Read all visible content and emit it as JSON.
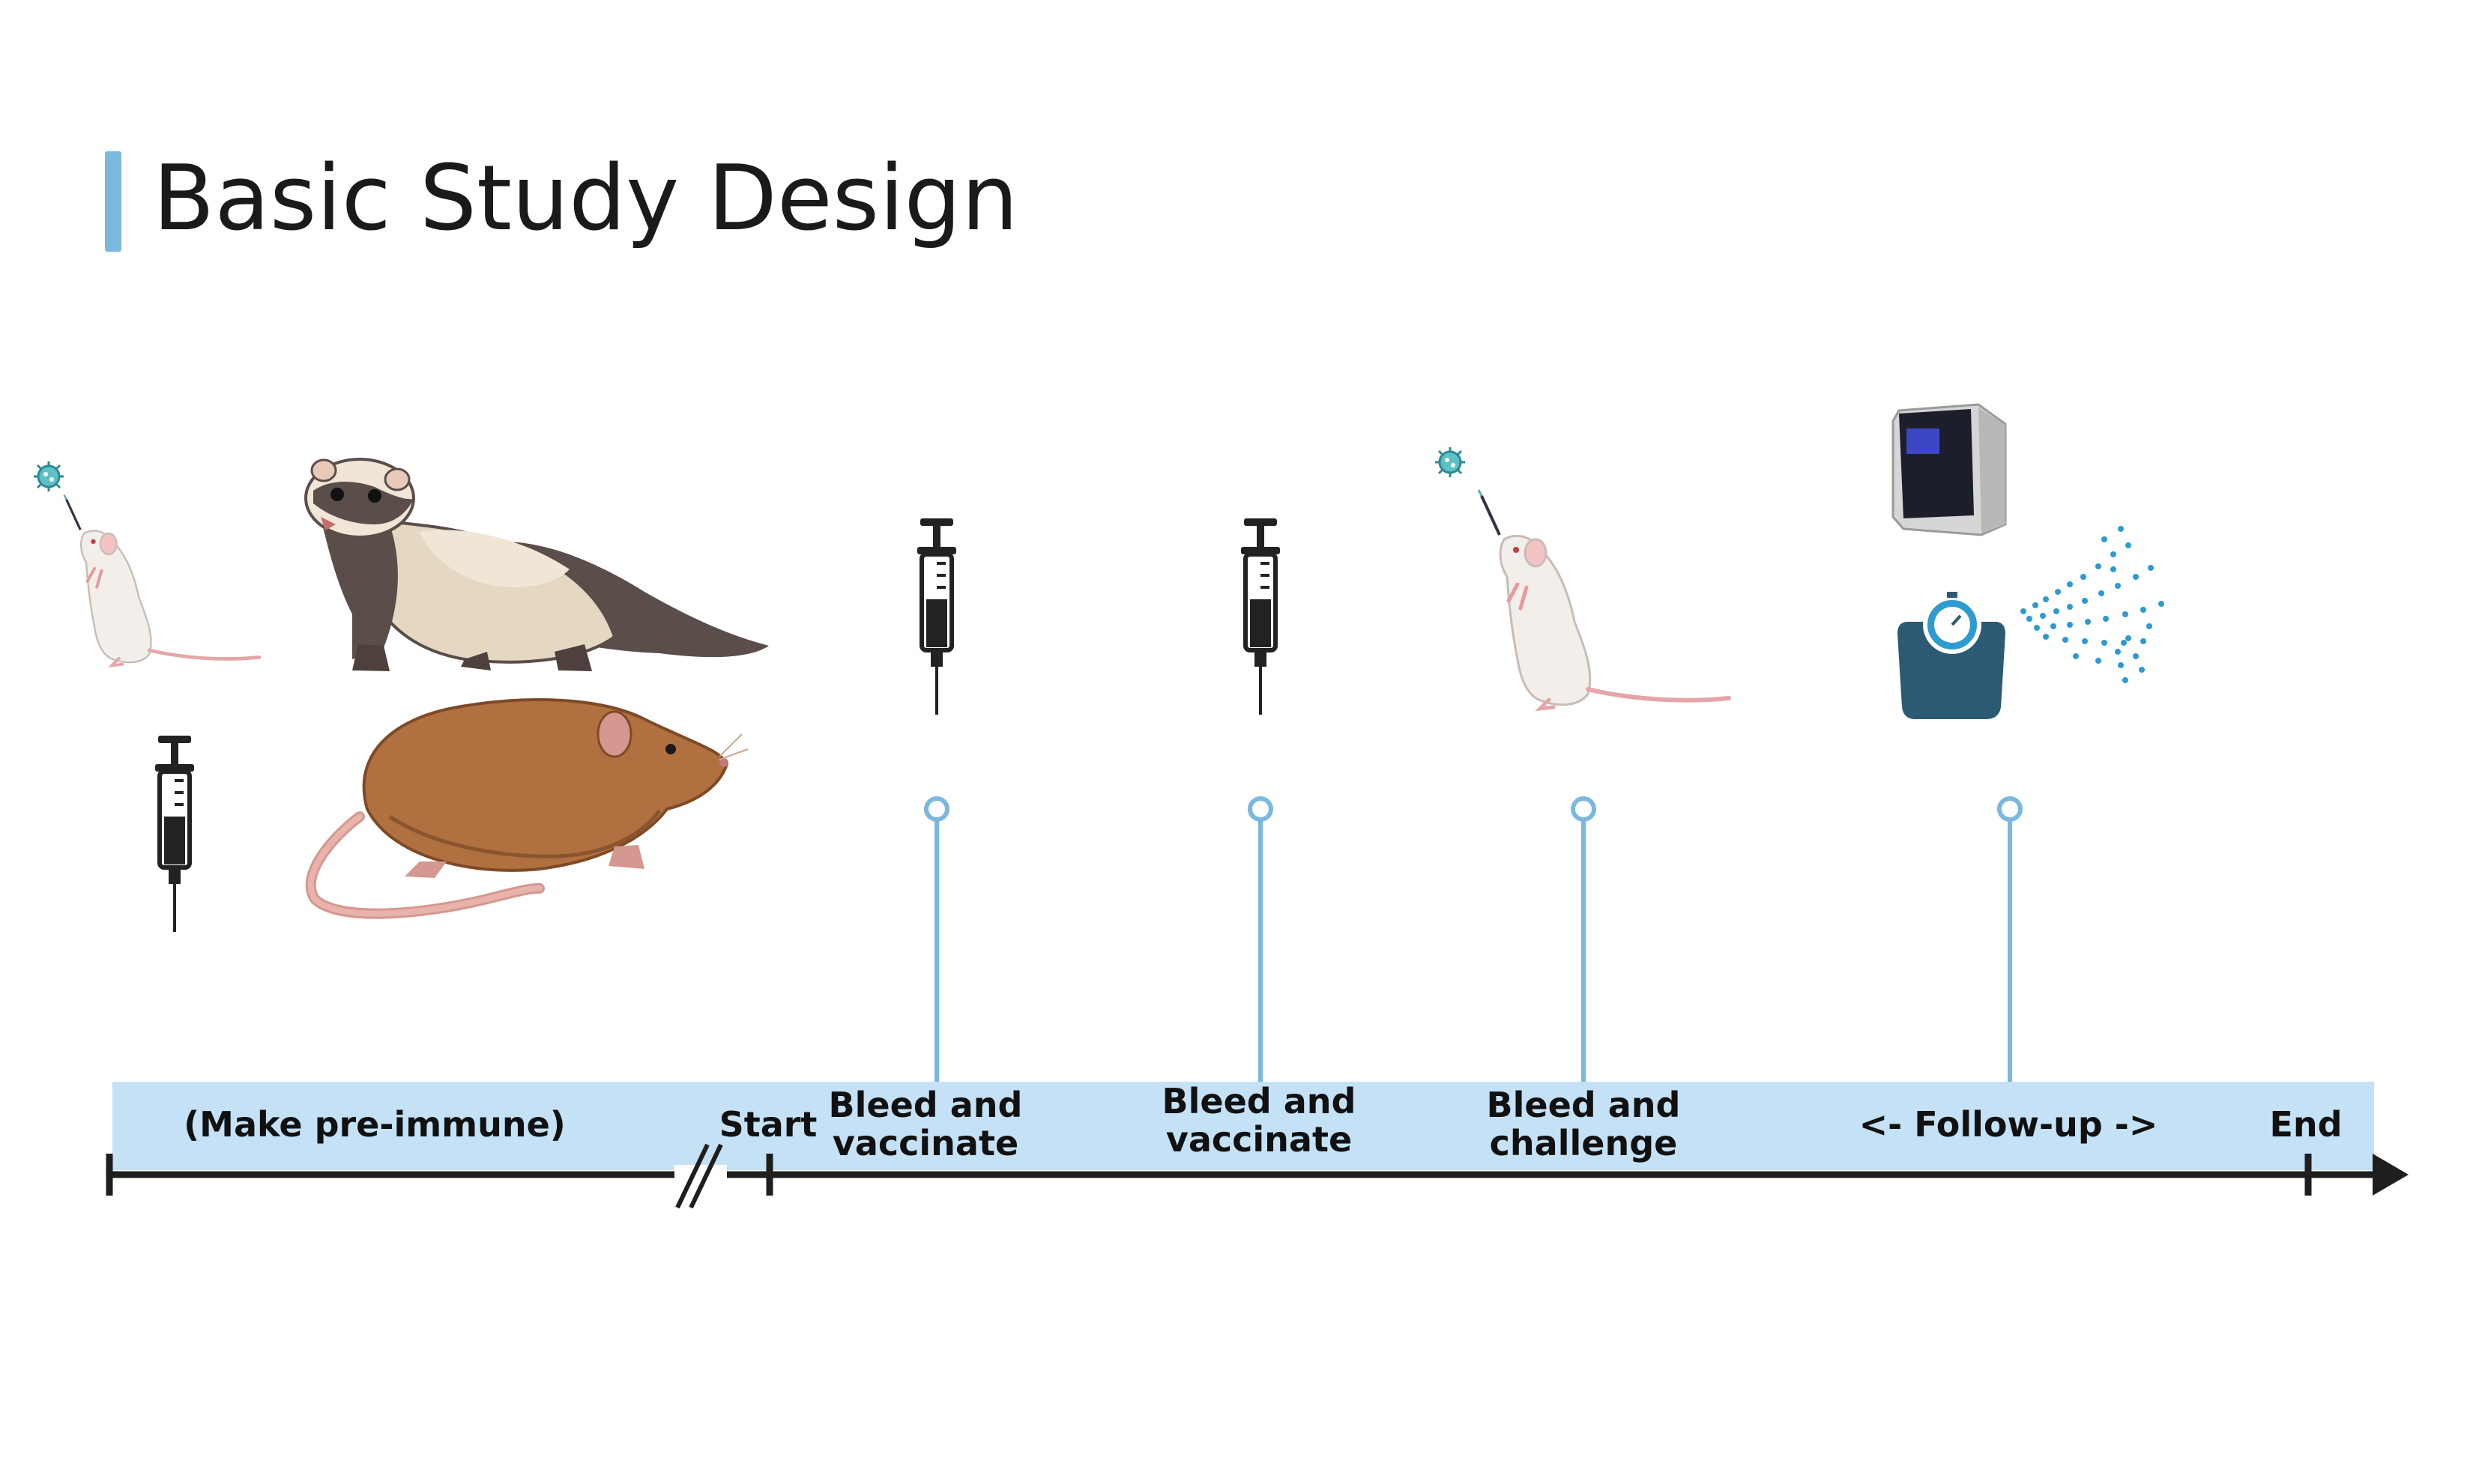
{
  "title": "Basic Study Design",
  "timeline": {
    "pre_phase_label": "(Make pre-immune)",
    "start_label": "Start",
    "end_label": "End",
    "events": [
      {
        "line1": "Bleed and",
        "line2": "vaccinate"
      },
      {
        "line1": "Bleed and",
        "line2": "vaccinate"
      },
      {
        "line1": "Bleed and",
        "line2": "challenge"
      },
      {
        "line1": "<- Follow-up ->",
        "line2": ""
      }
    ]
  },
  "colors": {
    "accent_bar": "#7ab8e0",
    "band": "#c4e1f6",
    "axis": "#1e1e1e",
    "pin": "#7ab8e0"
  },
  "icons": {
    "pre_phase": [
      "mouse-inoculation-icon",
      "ferret-icon",
      "hamster-icon",
      "syringe-icon"
    ],
    "event_1": "syringe-icon",
    "event_2": "syringe-icon",
    "event_3": "mouse-inoculation-icon",
    "event_4": [
      "analyzer-device-icon",
      "weight-scale-icon",
      "aerosol-spray-icon"
    ]
  }
}
